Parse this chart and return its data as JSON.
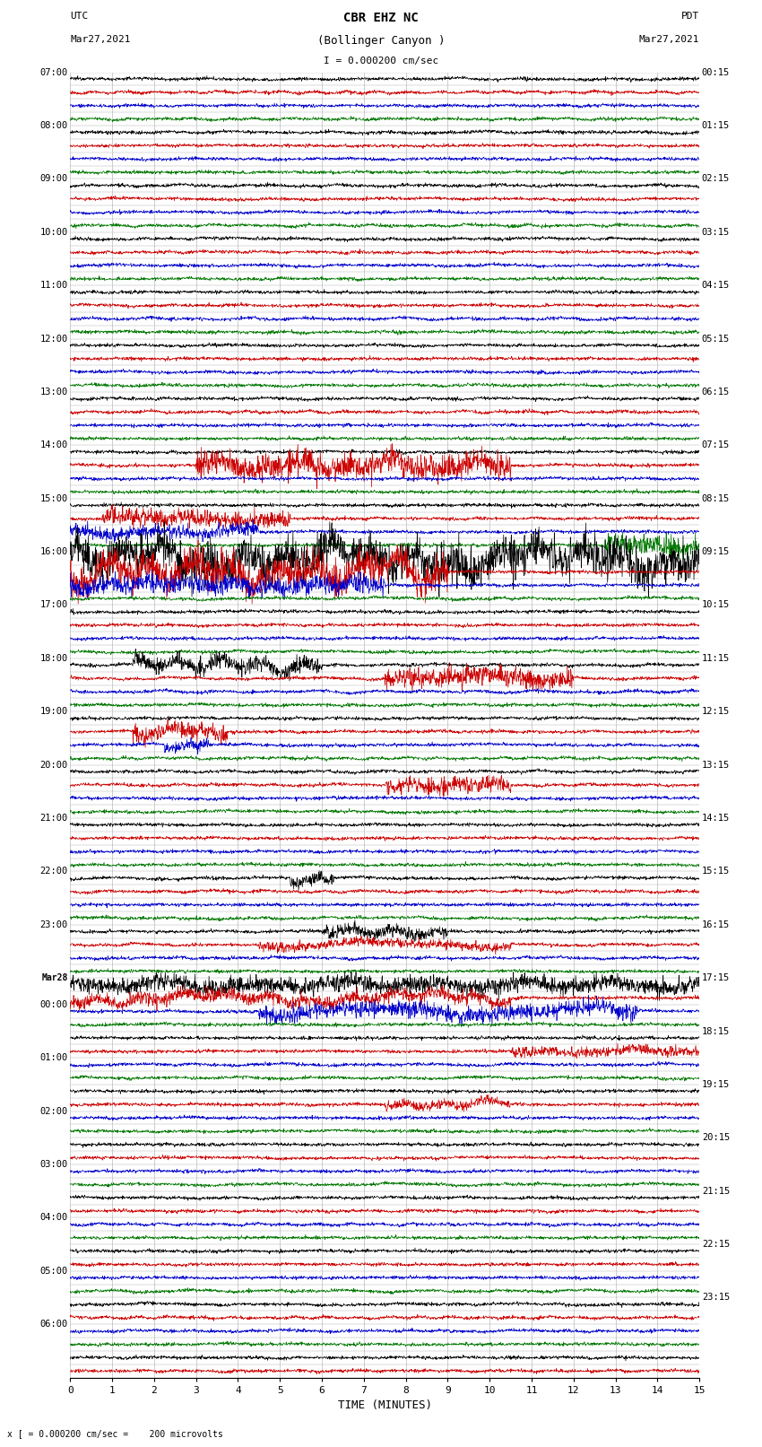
{
  "title_line1": "CBR EHZ NC",
  "title_line2": "(Bollinger Canyon )",
  "scale_label": "I = 0.000200 cm/sec",
  "bottom_label": "x [ = 0.000200 cm/sec =    200 microvolts",
  "utc_label": "UTC",
  "utc_date": "Mar27,2021",
  "pdt_label": "PDT",
  "pdt_date": "Mar27,2021",
  "xlabel": "TIME (MINUTES)",
  "xlim": [
    0,
    15
  ],
  "fig_width": 8.5,
  "fig_height": 16.13,
  "dpi": 100,
  "background_color": "#ffffff",
  "left_times": [
    "07:00",
    "",
    "",
    "",
    "08:00",
    "",
    "",
    "",
    "09:00",
    "",
    "",
    "",
    "10:00",
    "",
    "",
    "",
    "11:00",
    "",
    "",
    "",
    "12:00",
    "",
    "",
    "",
    "13:00",
    "",
    "",
    "",
    "14:00",
    "",
    "",
    "",
    "15:00",
    "",
    "",
    "",
    "16:00",
    "",
    "",
    "",
    "17:00",
    "",
    "",
    "",
    "18:00",
    "",
    "",
    "",
    "19:00",
    "",
    "",
    "",
    "20:00",
    "",
    "",
    "",
    "21:00",
    "",
    "",
    "",
    "22:00",
    "",
    "",
    "",
    "23:00",
    "",
    "",
    "",
    "Mar28",
    "",
    "00:00",
    "",
    "",
    "",
    "01:00",
    "",
    "",
    "",
    "02:00",
    "",
    "",
    "",
    "03:00",
    "",
    "",
    "",
    "04:00",
    "",
    "",
    "",
    "05:00",
    "",
    "",
    "",
    "06:00",
    "",
    ""
  ],
  "right_times": [
    "00:15",
    "",
    "",
    "",
    "01:15",
    "",
    "",
    "",
    "02:15",
    "",
    "",
    "",
    "03:15",
    "",
    "",
    "",
    "04:15",
    "",
    "",
    "",
    "05:15",
    "",
    "",
    "",
    "06:15",
    "",
    "",
    "",
    "07:15",
    "",
    "",
    "",
    "08:15",
    "",
    "",
    "",
    "09:15",
    "",
    "",
    "",
    "10:15",
    "",
    "",
    "",
    "11:15",
    "",
    "",
    "",
    "12:15",
    "",
    "",
    "",
    "13:15",
    "",
    "",
    "",
    "14:15",
    "",
    "",
    "",
    "15:15",
    "",
    "",
    "",
    "16:15",
    "",
    "",
    "",
    "17:15",
    "",
    "",
    "",
    "18:15",
    "",
    "",
    "",
    "19:15",
    "",
    "",
    "",
    "20:15",
    "",
    "",
    "",
    "21:15",
    "",
    "",
    "",
    "22:15",
    "",
    "",
    "",
    "23:15",
    "",
    ""
  ],
  "trace_colors": [
    "#000000",
    "#cc0000",
    "#0000cc",
    "#007700"
  ],
  "num_rows": 98,
  "base_noise": 0.06,
  "grid_color": "#aaaaaa",
  "grid_linewidth": 0.4,
  "trace_linewidth": 0.5
}
